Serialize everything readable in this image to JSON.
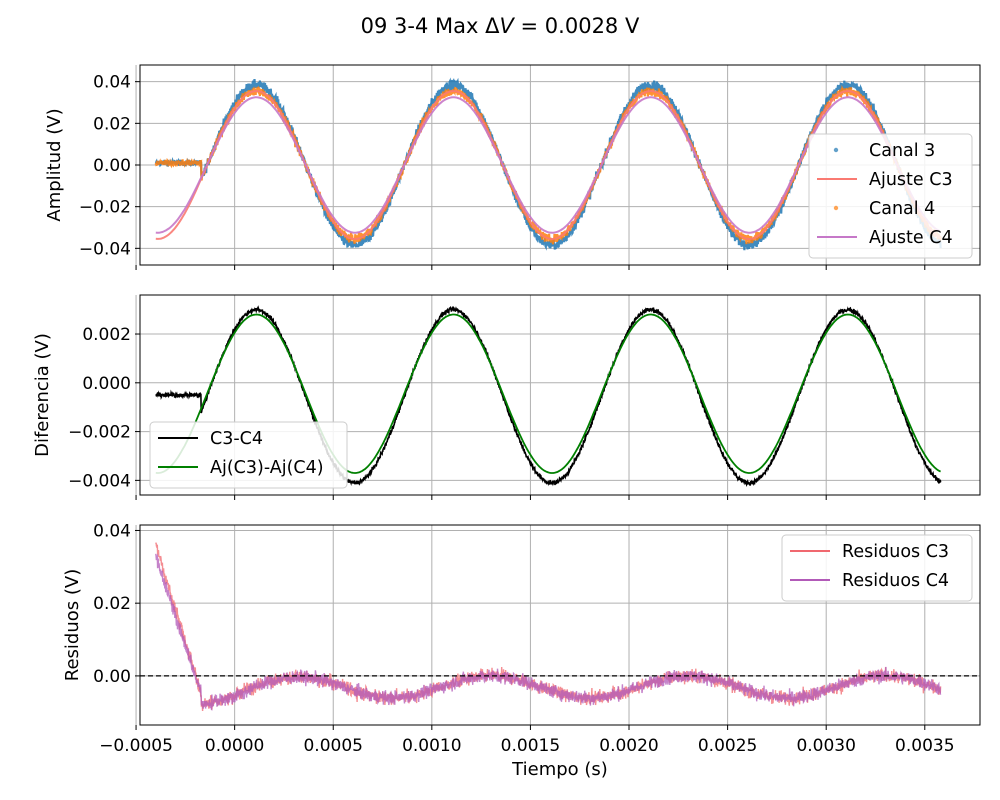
{
  "title": "09 3-4 Max ΔV = 0.0028 V",
  "chart_data": [
    {
      "type": "line",
      "name": "amplitude",
      "xlabel": "",
      "ylabel": "Amplitud (V)",
      "xlim": [
        -0.00048,
        0.00378
      ],
      "ylim": [
        -0.048,
        0.048
      ],
      "yticks": [
        -0.04,
        -0.02,
        0.0,
        0.02,
        0.04
      ],
      "ytick_labels": [
        "−0.04",
        "−0.02",
        "0.00",
        "0.02",
        "0.04"
      ],
      "grid": true,
      "legend_position": "lower-right",
      "model": {
        "amplitude": 0.035,
        "frequency_hz": 1000,
        "peak_time_s": 0.00011
      },
      "series": [
        {
          "name": "Canal 3",
          "kind": "scatter",
          "color": "#1f77b4",
          "amplitude": 0.0385,
          "noise": 0.0045,
          "pre_level": 0.001,
          "x_range": [
            -0.0004,
            0.00358
          ]
        },
        {
          "name": "Ajuste C3",
          "kind": "line",
          "color": "#fa7a72",
          "amplitude": 0.0355,
          "x_range": [
            -0.0004,
            0.00358
          ]
        },
        {
          "name": "Canal 4",
          "kind": "scatter",
          "color": "#ff7f0e",
          "amplitude": 0.0355,
          "noise": 0.004,
          "pre_level": 0.001,
          "x_range": [
            -0.0004,
            0.00358
          ]
        },
        {
          "name": "Ajuste C4",
          "kind": "line",
          "color": "#c678c8",
          "amplitude": 0.0325,
          "x_range": [
            -0.0004,
            0.00358
          ]
        }
      ]
    },
    {
      "type": "line",
      "name": "difference",
      "xlabel": "",
      "ylabel": "Diferencia (V)",
      "xlim": [
        -0.00048,
        0.00378
      ],
      "ylim": [
        -0.0046,
        0.0036
      ],
      "yticks": [
        -0.004,
        -0.002,
        0.0,
        0.002
      ],
      "ytick_labels": [
        "−0.004",
        "−0.002",
        "0.000",
        "0.002"
      ],
      "grid": true,
      "legend_position": "lower-left",
      "series": [
        {
          "name": "C3-C4",
          "kind": "line",
          "color": "#000000",
          "pre_level": -0.0005,
          "max": 0.003,
          "min": -0.0041,
          "x_range": [
            -0.0004,
            0.00358
          ]
        },
        {
          "name": "Aj(C3)-Aj(C4)",
          "kind": "line",
          "color": "#008000",
          "max": 0.0028,
          "min": -0.0037,
          "x_range": [
            -0.0004,
            0.00358
          ]
        }
      ]
    },
    {
      "type": "line",
      "name": "residuals",
      "xlabel": "Tiempo (s)",
      "ylabel": "Residuos (V)",
      "xlim": [
        -0.00048,
        0.00378
      ],
      "ylim": [
        -0.0135,
        0.0415
      ],
      "yticks": [
        0.0,
        0.02,
        0.04
      ],
      "ytick_labels": [
        "0.00",
        "0.02",
        "0.04"
      ],
      "xticks": [
        -0.0005,
        0.0,
        0.0005,
        0.001,
        0.0015,
        0.002,
        0.0025,
        0.003,
        0.0035
      ],
      "xtick_labels": [
        "−0.0005",
        "0.0000",
        "0.0005",
        "0.0010",
        "0.0015",
        "0.0020",
        "0.0025",
        "0.0030",
        "0.0035"
      ],
      "grid": true,
      "legend_position": "top-right",
      "reference_line": {
        "y": 0.0,
        "style": "dashed",
        "color": "#000000"
      },
      "series": [
        {
          "name": "Residuos C3",
          "kind": "line",
          "color": "#f0686f",
          "start_value": 0.036,
          "x_range": [
            -0.0004,
            0.00358
          ]
        },
        {
          "name": "Residuos C4",
          "kind": "line",
          "color": "#b25ab8",
          "start_value": 0.033,
          "x_range": [
            -0.0004,
            0.00358
          ]
        }
      ]
    }
  ]
}
